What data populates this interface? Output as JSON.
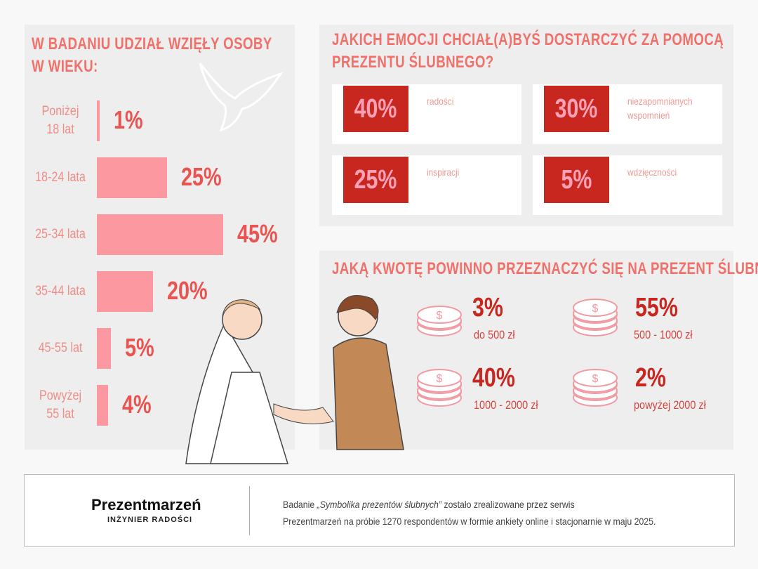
{
  "chart_data": {
    "type": "bar",
    "title": "W BADANIU UDZIAŁ WZIĘŁY OSOBY W WIEKU:",
    "title_lines": [
      "W BADANIU UDZIAŁ WZIĘŁY OSOBY",
      "W WIEKU:"
    ],
    "categories": [
      [
        "Poniżej",
        "18 lat"
      ],
      [
        "18-24 lata"
      ],
      [
        "25-34 lata"
      ],
      [
        "35-44 lata"
      ],
      [
        "45-55 lat"
      ],
      [
        "Powyżej",
        "55 lat"
      ]
    ],
    "values": [
      1,
      25,
      45,
      20,
      5,
      4
    ],
    "labels": [
      "1%",
      "25%",
      "45%",
      "20%",
      "5%",
      "4%"
    ],
    "orientation": "horizontal",
    "bar_color": "#fc98a0",
    "label_color": "#ea5350"
  },
  "emotions": {
    "title_lines": [
      "JAKICH EMOCJI CHCIAŁ(A)BYŚ DOSTARCZYĆ ZA POMOCĄ",
      "PREZENTU ŚLUBNEGO?"
    ],
    "items": [
      {
        "value": "40%",
        "label": "radości"
      },
      {
        "value": "30%",
        "label": "niezapomnianych wspomnień"
      },
      {
        "value": "25%",
        "label": "inspiracji"
      },
      {
        "value": "5%",
        "label": "wdzięczności"
      }
    ]
  },
  "amount": {
    "title": "JAKĄ KWOTĘ POWINNO PRZEZNACZYĆ SIĘ NA PREZENT ŚLUBNY?",
    "items": [
      {
        "value": "3%",
        "label": "do 500 zł",
        "icon": "coin-stack-icon"
      },
      {
        "value": "55%",
        "label": "500 - 1000 zł",
        "icon": "coin-stack-icon"
      },
      {
        "value": "40%",
        "label": "1000 - 2000 zł",
        "icon": "coin-stack-icon"
      },
      {
        "value": "2%",
        "label": "powyżej 2000 zł",
        "icon": "coin-stack-icon"
      }
    ]
  },
  "footer": {
    "logo": "Prezentmarzeń",
    "tagline": "INŻYNIER RADOŚCI",
    "line1_pre": "Badanie ",
    "line1_em": "„Symbolika prezentów ślubnych”",
    "line1_post": " zostało zrealizowane przez serwis",
    "line2": "Prezentmarzeń na próbie 1270 respondentów w formie ankiety online i stacjonarnie w maju 2025."
  },
  "colors": {
    "accent": "#c8271f",
    "pink": "#fc98a0",
    "heading": "#f0706a",
    "panel": "#eeeeee"
  }
}
